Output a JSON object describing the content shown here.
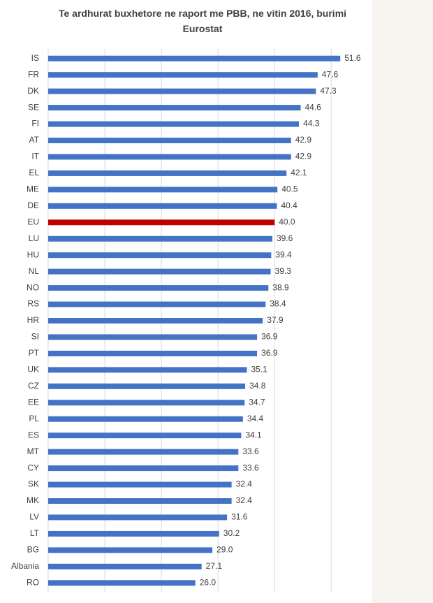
{
  "chart_data": {
    "type": "bar",
    "orientation": "horizontal",
    "title": "Te ardhurat buxhetore ne raport me PBB, ne vitin 2016, burimi Eurostat",
    "categories": [
      "IS",
      "FR",
      "DK",
      "SE",
      "FI",
      "AT",
      "IT",
      "EL",
      "ME",
      "DE",
      "EU",
      "LU",
      "HU",
      "NL",
      "NO",
      "RS",
      "HR",
      "SI",
      "PT",
      "UK",
      "CZ",
      "EE",
      "PL",
      "ES",
      "MT",
      "CY",
      "SK",
      "MK",
      "LV",
      "LT",
      "BG",
      "Albania",
      "RO"
    ],
    "values": [
      51.6,
      47.6,
      47.3,
      44.6,
      44.3,
      42.9,
      42.9,
      42.1,
      40.5,
      40.4,
      40,
      39.6,
      39.4,
      39.3,
      38.9,
      38.4,
      37.9,
      36.9,
      36.9,
      35.1,
      34.8,
      34.7,
      34.4,
      34.1,
      33.6,
      33.6,
      32.4,
      32.4,
      31.6,
      30.2,
      29,
      27.1,
      26
    ],
    "value_labels": [
      "51.6",
      "47.6",
      "47.3",
      "44.6",
      "44.3",
      "42.9",
      "42.9",
      "42.1",
      "40.5",
      "40.4",
      "40.0",
      "39.6",
      "39.4",
      "39.3",
      "38.9",
      "38.4",
      "37.9",
      "36.9",
      "36.9",
      "35.1",
      "34.8",
      "34.7",
      "34.4",
      "34.1",
      "33.6",
      "33.6",
      "32.4",
      "32.4",
      "31.6",
      "30.2",
      "29.0",
      "27.1",
      "26.0"
    ],
    "colors": [
      "#4472c4",
      "#4472c4",
      "#4472c4",
      "#4472c4",
      "#4472c4",
      "#4472c4",
      "#4472c4",
      "#4472c4",
      "#4472c4",
      "#4472c4",
      "#c00000",
      "#4472c4",
      "#4472c4",
      "#4472c4",
      "#4472c4",
      "#4472c4",
      "#4472c4",
      "#4472c4",
      "#4472c4",
      "#4472c4",
      "#4472c4",
      "#4472c4",
      "#4472c4",
      "#4472c4",
      "#4472c4",
      "#4472c4",
      "#4472c4",
      "#4472c4",
      "#4472c4",
      "#4472c4",
      "#4472c4",
      "#4472c4",
      "#4472c4"
    ],
    "xlim": [
      0,
      57
    ],
    "xticks": [
      0,
      10,
      20,
      30,
      40,
      50
    ],
    "grid": true
  }
}
